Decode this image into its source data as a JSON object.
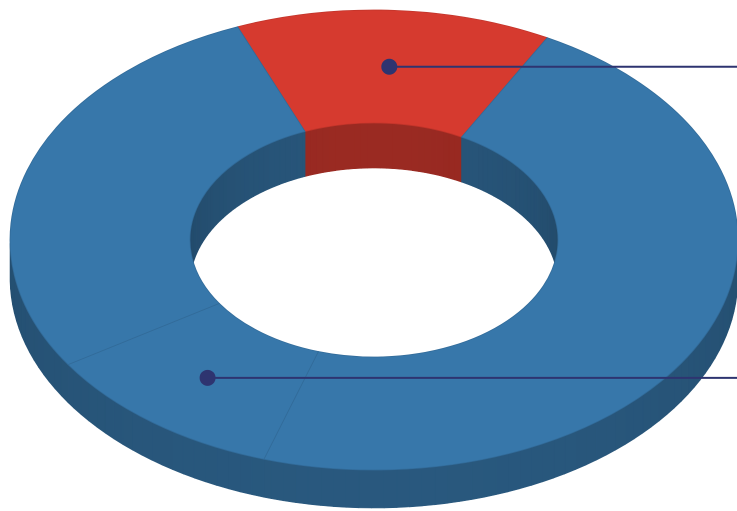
{
  "chart_data": {
    "type": "pie",
    "variant": "3d-donut",
    "slices": [
      {
        "value": 14,
        "color": "#D63A2F"
      },
      {
        "value": 47,
        "color": "#3777AA"
      },
      {
        "value": 11,
        "color": "#3777AA"
      },
      {
        "value": 28,
        "color": "#3777AA"
      }
    ],
    "labels": [],
    "legend": "none",
    "callouts": [
      {
        "slice_index": 0,
        "side": "right",
        "color": "#2E3470"
      },
      {
        "slice_index": 2,
        "side": "right",
        "color": "#2E3470"
      }
    ]
  }
}
